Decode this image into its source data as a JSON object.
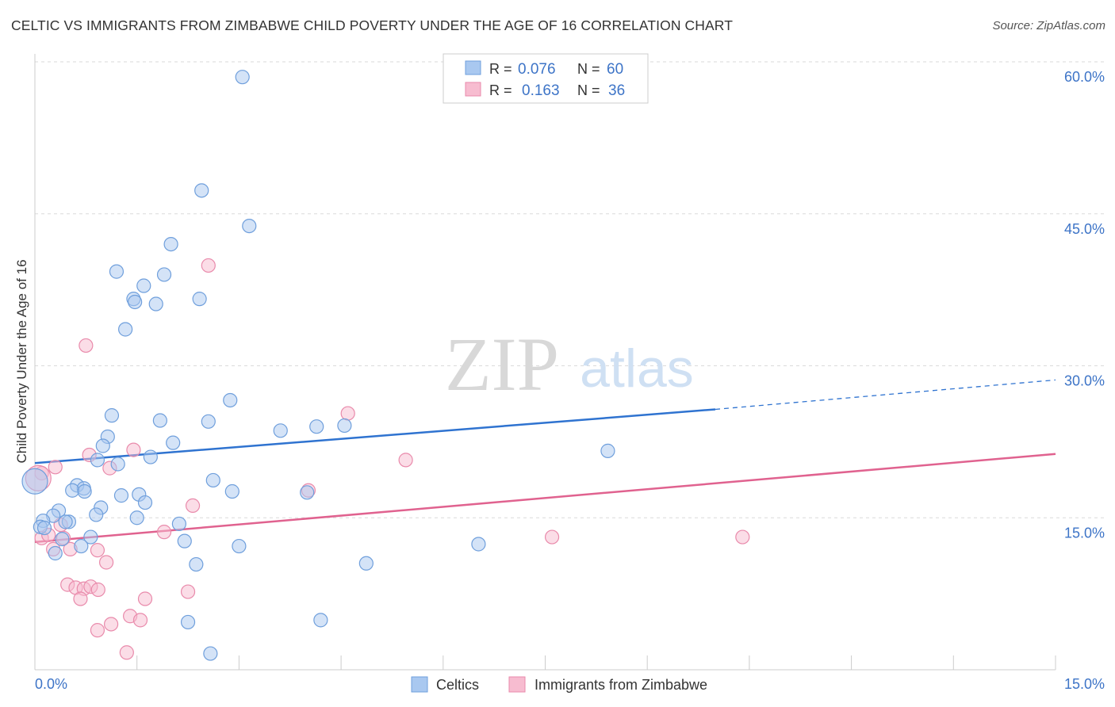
{
  "header": {
    "title": "CELTIC VS IMMIGRANTS FROM ZIMBABWE CHILD POVERTY UNDER THE AGE OF 16 CORRELATION CHART",
    "source": "Source: ZipAtlas.com"
  },
  "watermark": {
    "zip": "ZIP",
    "atlas": "atlas"
  },
  "colors": {
    "celtic_fill": "#a9c8f0",
    "celtic_stroke": "#6f9fdc",
    "celtic_line": "#2f73d0",
    "zim_fill": "#f7bcd0",
    "zim_stroke": "#e98aab",
    "zim_line": "#e0628f",
    "value_blue": "#3d74c7",
    "grid": "#dadada"
  },
  "stats_legend": [
    {
      "series": "Celtics",
      "r_label": "R =",
      "r_value": "0.076",
      "n_label": "N =",
      "n_value": "60"
    },
    {
      "series": "Immigrants from Zimbabwe",
      "r_label": "R =",
      "r_value": "0.163",
      "n_label": "N =",
      "n_value": "36"
    }
  ],
  "chart_data": {
    "type": "scatter",
    "ylabel": "Child Poverty Under the Age of 16",
    "xlim": [
      0,
      15
    ],
    "ylim": [
      0,
      60
    ],
    "x_tick_labels": {
      "0": "0.0%",
      "15": "15.0%"
    },
    "y_tick_labels": {
      "15": "15.0%",
      "30": "30.0%",
      "45": "45.0%",
      "60": "60.0%"
    },
    "legend": [
      "Celtics",
      "Immigrants from Zimbabwe"
    ],
    "series": [
      {
        "name": "Celtics",
        "trend": {
          "x0": 0,
          "y0": 20.4,
          "x1": 10.0,
          "y1": 25.7,
          "dashed_to_x": 15,
          "dashed_to_y": 28.6
        },
        "points": [
          [
            3.05,
            58.5
          ],
          [
            2.45,
            47.3
          ],
          [
            3.15,
            43.8
          ],
          [
            2.0,
            42.0
          ],
          [
            1.2,
            39.3
          ],
          [
            1.9,
            39.0
          ],
          [
            1.6,
            37.9
          ],
          [
            1.45,
            36.6
          ],
          [
            2.42,
            36.6
          ],
          [
            1.47,
            36.3
          ],
          [
            1.78,
            36.1
          ],
          [
            1.33,
            33.6
          ],
          [
            2.87,
            26.6
          ],
          [
            1.13,
            25.1
          ],
          [
            1.84,
            24.6
          ],
          [
            2.55,
            24.5
          ],
          [
            4.14,
            24.0
          ],
          [
            4.55,
            24.1
          ],
          [
            3.61,
            23.6
          ],
          [
            1.07,
            23.0
          ],
          [
            2.03,
            22.4
          ],
          [
            1.0,
            22.1
          ],
          [
            8.42,
            21.6
          ],
          [
            1.7,
            21.0
          ],
          [
            0.92,
            20.7
          ],
          [
            1.22,
            20.3
          ],
          [
            0.0,
            18.6
          ],
          [
            2.62,
            18.7
          ],
          [
            0.62,
            18.2
          ],
          [
            0.72,
            17.9
          ],
          [
            0.55,
            17.7
          ],
          [
            0.73,
            17.6
          ],
          [
            2.9,
            17.6
          ],
          [
            4.0,
            17.5
          ],
          [
            1.27,
            17.2
          ],
          [
            1.53,
            17.3
          ],
          [
            1.62,
            16.5
          ],
          [
            0.97,
            16.0
          ],
          [
            0.35,
            15.7
          ],
          [
            0.9,
            15.3
          ],
          [
            0.27,
            15.2
          ],
          [
            1.5,
            15.0
          ],
          [
            0.12,
            14.7
          ],
          [
            0.5,
            14.6
          ],
          [
            0.45,
            14.6
          ],
          [
            2.12,
            14.4
          ],
          [
            0.08,
            14.1
          ],
          [
            0.14,
            14.0
          ],
          [
            0.82,
            13.1
          ],
          [
            0.4,
            12.9
          ],
          [
            2.2,
            12.7
          ],
          [
            0.68,
            12.2
          ],
          [
            3.0,
            12.2
          ],
          [
            6.52,
            12.4
          ],
          [
            0.3,
            11.5
          ],
          [
            2.37,
            10.4
          ],
          [
            4.87,
            10.5
          ],
          [
            2.25,
            4.7
          ],
          [
            4.2,
            4.9
          ],
          [
            2.58,
            1.6
          ]
        ]
      },
      {
        "name": "Immigrants from Zimbabwe",
        "trend": {
          "x0": 0,
          "y0": 12.6,
          "x1": 15,
          "y1": 21.3
        },
        "points": [
          [
            2.55,
            39.9
          ],
          [
            0.75,
            32.0
          ],
          [
            4.6,
            25.3
          ],
          [
            1.45,
            21.7
          ],
          [
            0.8,
            21.2
          ],
          [
            5.45,
            20.7
          ],
          [
            0.3,
            20.0
          ],
          [
            1.1,
            19.9
          ],
          [
            0.1,
            19.4
          ],
          [
            4.02,
            17.7
          ],
          [
            2.32,
            16.2
          ],
          [
            0.38,
            14.3
          ],
          [
            1.9,
            13.6
          ],
          [
            7.6,
            13.1
          ],
          [
            10.4,
            13.1
          ],
          [
            0.1,
            13.0
          ],
          [
            0.42,
            13.0
          ],
          [
            0.27,
            11.9
          ],
          [
            0.52,
            11.9
          ],
          [
            0.92,
            11.8
          ],
          [
            1.05,
            10.6
          ],
          [
            0.48,
            8.4
          ],
          [
            0.6,
            8.1
          ],
          [
            0.72,
            8.0
          ],
          [
            0.82,
            8.2
          ],
          [
            0.93,
            7.9
          ],
          [
            2.25,
            7.7
          ],
          [
            0.67,
            7.0
          ],
          [
            1.62,
            7.0
          ],
          [
            1.4,
            5.3
          ],
          [
            1.55,
            4.9
          ],
          [
            1.12,
            4.5
          ],
          [
            0.92,
            3.9
          ],
          [
            1.35,
            1.7
          ],
          [
            0.2,
            13.3
          ],
          [
            0.05,
            18.9
          ]
        ]
      }
    ]
  }
}
